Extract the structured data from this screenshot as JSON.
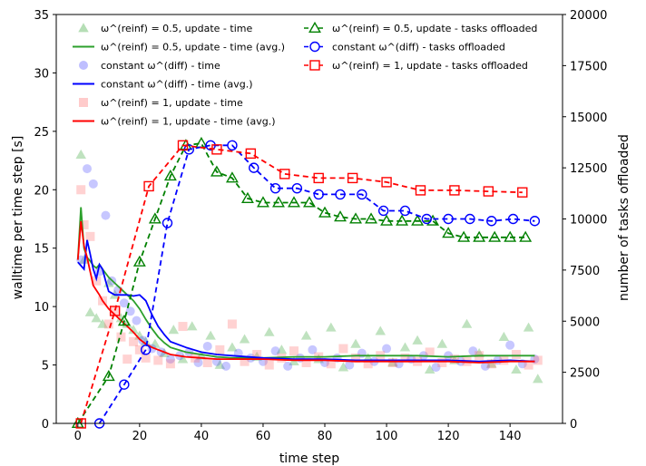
{
  "chart_data": {
    "type": "line",
    "xlabel": "time step",
    "ylabel_left": "walltime per time step [s]",
    "ylabel_right": "number of tasks offloaded",
    "xlim": [
      -7,
      157
    ],
    "ylim_left": [
      0,
      35
    ],
    "ylim_right": [
      0,
      20000
    ],
    "x_ticks": [
      0,
      20,
      40,
      60,
      80,
      100,
      120,
      140
    ],
    "x_tick_labels": [
      "0",
      "20",
      "40",
      "60",
      "80",
      "100",
      "120",
      "140"
    ],
    "y_left_ticks": [
      0,
      5,
      10,
      15,
      20,
      25,
      30,
      35
    ],
    "y_left_tick_labels": [
      "0",
      "5",
      "10",
      "15",
      "20",
      "25",
      "30",
      "35"
    ],
    "y_right_ticks": [
      0,
      2500,
      5000,
      7500,
      10000,
      12500,
      15000,
      17500,
      20000
    ],
    "y_right_tick_labels": [
      "0",
      "2500",
      "5000",
      "7500",
      "10000",
      "12500",
      "15000",
      "17500",
      "20000"
    ],
    "grid": false,
    "legend_position": "top",
    "legend": [
      {
        "label": "ω^(reinf) = 0.5, update - time",
        "color": "#2ca02c",
        "style": "triangle-scatter"
      },
      {
        "label": "ω^(reinf) = 0.5, update - time (avg.)",
        "color": "#2ca02c",
        "style": "line"
      },
      {
        "label": "constant ω^(diff) - time",
        "color": "#4444ff",
        "style": "circle-scatter"
      },
      {
        "label": "constant ω^(diff) - time (avg.)",
        "color": "#0000ff",
        "style": "line"
      },
      {
        "label": "ω^(reinf) = 1, update - time",
        "color": "#ff6b6b",
        "style": "square-scatter"
      },
      {
        "label": "ω^(reinf) = 1, update - time (avg.)",
        "color": "#ff0000",
        "style": "line"
      },
      {
        "label": "ω^(reinf) = 0.5, update - tasks offloaded",
        "color": "#008000",
        "style": "dashed-triangle"
      },
      {
        "label": "constant ω^(diff) - tasks offloaded",
        "color": "#0000ff",
        "style": "dashed-circle"
      },
      {
        "label": "ω^(reinf) = 1, update - tasks offloaded",
        "color": "#ff0000",
        "style": "dashed-square"
      }
    ],
    "series": [
      {
        "name": "ω^(reinf) = 0.5, update - tasks offloaded",
        "axis": "right",
        "color": "#008000",
        "marker": "triangle",
        "x": [
          0,
          10,
          15,
          20,
          25,
          30,
          35,
          40,
          45,
          50,
          55,
          60,
          65,
          70,
          75,
          80,
          85,
          90,
          95,
          100,
          105,
          110,
          115,
          120,
          125,
          130,
          135,
          140,
          145
        ],
        "y": [
          0,
          2300,
          5000,
          7900,
          10000,
          12100,
          13600,
          13700,
          12300,
          12000,
          11000,
          10800,
          10800,
          10800,
          10800,
          10300,
          10100,
          10000,
          10000,
          9900,
          9900,
          9900,
          9900,
          9300,
          9100,
          9100,
          9100,
          9100,
          9100
        ]
      },
      {
        "name": "constant ω^(diff) - tasks offloaded",
        "axis": "right",
        "color": "#0000ff",
        "marker": "circle",
        "x": [
          7,
          15,
          22,
          29,
          36,
          43,
          50,
          57,
          64,
          71,
          78,
          85,
          92,
          99,
          106,
          113,
          120,
          127,
          134,
          141,
          148
        ],
        "y": [
          0,
          1900,
          3600,
          9800,
          13400,
          13600,
          13600,
          12500,
          11500,
          11500,
          11200,
          11200,
          11200,
          10400,
          10400,
          10000,
          10000,
          10000,
          9900,
          10000,
          9900
        ]
      },
      {
        "name": "ω^(reinf) = 1, update - tasks offloaded",
        "axis": "right",
        "color": "#ff0000",
        "marker": "square",
        "x": [
          1,
          12,
          23,
          34,
          45,
          56,
          67,
          78,
          89,
          100,
          111,
          122,
          133,
          144
        ],
        "y": [
          0,
          5500,
          11600,
          13600,
          13400,
          13200,
          12200,
          12000,
          12000,
          11800,
          11400,
          11400,
          11350,
          11300
        ]
      },
      {
        "name": "ω^(reinf) = 0.5, update - time (avg.)",
        "axis": "left",
        "color": "#2ca02c",
        "x": [
          0,
          1,
          2,
          3,
          4,
          5,
          6,
          7,
          8,
          10,
          12,
          14,
          16,
          18,
          20,
          22,
          24,
          26,
          28,
          30,
          35,
          40,
          45,
          50,
          60,
          70,
          80,
          90,
          100,
          110,
          120,
          130,
          140,
          148
        ],
        "y": [
          14,
          18.5,
          15,
          14.2,
          13.9,
          13.5,
          13.3,
          13.6,
          13.2,
          12.5,
          12,
          11.5,
          11,
          10.5,
          9.8,
          8.9,
          8.1,
          7.4,
          6.9,
          6.5,
          6.1,
          5.9,
          5.7,
          5.6,
          5.6,
          5.7,
          5.7,
          5.8,
          5.8,
          5.8,
          5.7,
          5.8,
          5.8,
          5.8
        ]
      },
      {
        "name": "constant ω^(diff) - time (avg.)",
        "axis": "left",
        "color": "#0000ff",
        "x": [
          0,
          1,
          2,
          3,
          4,
          5,
          6,
          7,
          8,
          9,
          10,
          12,
          14,
          16,
          18,
          20,
          22,
          24,
          26,
          28,
          30,
          35,
          40,
          45,
          50,
          60,
          70,
          80,
          90,
          100,
          110,
          120,
          130,
          140,
          148
        ],
        "y": [
          13.8,
          13.5,
          13.2,
          15.7,
          14.5,
          13.2,
          12.4,
          13.6,
          13.2,
          12.2,
          11.3,
          11,
          11,
          11,
          10.9,
          11,
          10.5,
          9.3,
          8.3,
          7.6,
          7,
          6.5,
          6.1,
          5.9,
          5.8,
          5.6,
          5.5,
          5.5,
          5.4,
          5.4,
          5.4,
          5.4,
          5.3,
          5.4,
          5.3
        ]
      },
      {
        "name": "ω^(reinf) = 1, update - time (avg.)",
        "axis": "left",
        "color": "#ff0000",
        "x": [
          0,
          1,
          2,
          3,
          4,
          5,
          6,
          7,
          8,
          10,
          12,
          14,
          16,
          18,
          20,
          22,
          24,
          26,
          28,
          30,
          35,
          40,
          45,
          50,
          60,
          70,
          80,
          90,
          100,
          110,
          120,
          130,
          140,
          148
        ],
        "y": [
          14,
          17.3,
          15.2,
          14.2,
          13,
          11.8,
          11.4,
          11,
          10.5,
          9.8,
          9.3,
          8.8,
          8.3,
          7.8,
          7.2,
          6.8,
          6.5,
          6.3,
          6.1,
          5.9,
          5.7,
          5.6,
          5.5,
          5.5,
          5.5,
          5.4,
          5.4,
          5.3,
          5.3,
          5.3,
          5.3,
          5.2,
          5.3,
          5.3
        ]
      },
      {
        "name": "ω^(reinf) = 0.5, update - time",
        "axis": "left",
        "color": "#2ca02c",
        "marker": "triangle",
        "scatter": true,
        "x": [
          1,
          2,
          4,
          6,
          8,
          10,
          12,
          14,
          16,
          18,
          20,
          22,
          25,
          28,
          31,
          34,
          37,
          40,
          43,
          46,
          50,
          54,
          58,
          62,
          66,
          70,
          74,
          78,
          82,
          86,
          90,
          94,
          98,
          102,
          106,
          110,
          114,
          118,
          122,
          126,
          130,
          134,
          138,
          142,
          146,
          149
        ],
        "y": [
          23,
          14,
          9.5,
          9,
          8.5,
          12,
          11,
          9,
          8.5,
          8,
          7.5,
          7,
          6.8,
          6,
          8,
          5.5,
          8.3,
          5.8,
          7.5,
          5,
          6.5,
          7.2,
          5.7,
          7.8,
          6.3,
          5.3,
          7.5,
          5.5,
          8.2,
          4.8,
          6.8,
          5.6,
          7.9,
          5.2,
          6.5,
          7.1,
          4.6,
          6.8,
          5.4,
          8.5,
          6,
          5.1,
          7.4,
          4.6,
          8.2,
          3.8
        ]
      },
      {
        "name": "constant ω^(diff) - time",
        "axis": "left",
        "color": "#4444ff",
        "marker": "circle",
        "scatter": true,
        "x": [
          1,
          3,
          5,
          7,
          9,
          11,
          13,
          15,
          17,
          19,
          21,
          24,
          27,
          30,
          33,
          36,
          39,
          42,
          45,
          48,
          52,
          56,
          60,
          64,
          68,
          72,
          76,
          80,
          84,
          88,
          92,
          96,
          100,
          104,
          108,
          112,
          116,
          120,
          124,
          128,
          132,
          136,
          140,
          144,
          148
        ],
        "y": [
          14,
          21.8,
          20.5,
          13,
          17.8,
          12.2,
          11.4,
          10.3,
          9.6,
          8.8,
          7.1,
          6.4,
          6.1,
          5.5,
          5.8,
          6.1,
          5.2,
          6.6,
          5.3,
          4.9,
          6,
          5.6,
          5.3,
          6.2,
          4.9,
          5.6,
          6.3,
          5.2,
          5.6,
          5,
          6,
          5.3,
          6.4,
          5.1,
          5.5,
          5.8,
          4.8,
          5.8,
          5.3,
          6.2,
          4.9,
          5.4,
          6.7,
          5.1,
          5.5
        ]
      },
      {
        "name": "ω^(reinf) = 1, update - time",
        "axis": "left",
        "color": "#ff6b6b",
        "marker": "square",
        "scatter": true,
        "x": [
          1,
          2,
          4,
          6,
          8,
          10,
          12,
          14,
          16,
          18,
          20,
          22,
          26,
          30,
          34,
          38,
          42,
          46,
          50,
          54,
          58,
          62,
          66,
          70,
          74,
          78,
          82,
          86,
          90,
          94,
          98,
          102,
          106,
          110,
          114,
          118,
          122,
          126,
          130,
          134,
          138,
          142,
          146,
          149
        ],
        "y": [
          20,
          17,
          16,
          12.2,
          10.5,
          8.5,
          9.6,
          7.4,
          5.5,
          7,
          6.3,
          5.6,
          5.4,
          5.1,
          8.3,
          5.6,
          5.2,
          6.3,
          8.5,
          5.3,
          5.9,
          5,
          5.6,
          6.2,
          5.2,
          5.7,
          5.1,
          6.4,
          5.6,
          5.1,
          5.8,
          5.2,
          5.6,
          5.3,
          6.1,
          5.2,
          5.5,
          5.3,
          5.8,
          5.1,
          5.4,
          5.9,
          5,
          5.4
        ]
      }
    ]
  }
}
